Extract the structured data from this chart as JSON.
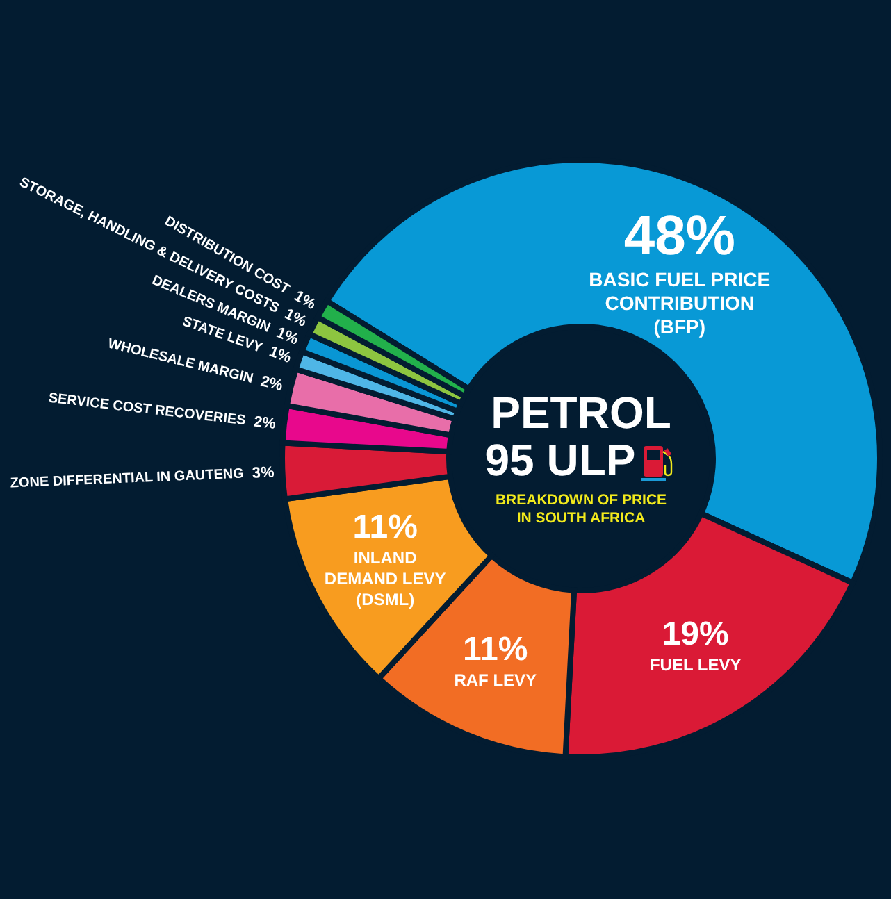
{
  "chart_data": {
    "type": "donut",
    "title": "PETROL 95 ULP",
    "subtitle": "BREAKDOWN OF PRICE IN SOUTH AFRICA",
    "categories": [
      "BASIC FUEL PRICE CONTRIBUTION (BFP)",
      "FUEL LEVY",
      "RAF LEVY",
      "INLAND DEMAND LEVY (DSML)",
      "ZONE DIFFERENTIAL IN GAUTENG",
      "SERVICE COST RECOVERIES",
      "WHOLESALE MARGIN",
      "STATE LEVY",
      "DEALERS MARGIN",
      "STORAGE, HANDLING & DELIVERY COSTS",
      "DISTRIBUTION COST"
    ],
    "values": [
      48,
      19,
      11,
      11,
      3,
      2,
      2,
      1,
      1,
      1,
      1
    ],
    "value_labels": [
      "48%",
      "19%",
      "11%",
      "11%",
      "3%",
      "2%",
      "2%",
      "1%",
      "1%",
      "1%",
      "1%"
    ],
    "colors": [
      "#0899d6",
      "#da1a36",
      "#f26d24",
      "#f89c1f",
      "#d91b37",
      "#e8088c",
      "#e86ea9",
      "#4fb6e6",
      "#0996d4",
      "#8dc540",
      "#22b04b"
    ]
  }
}
